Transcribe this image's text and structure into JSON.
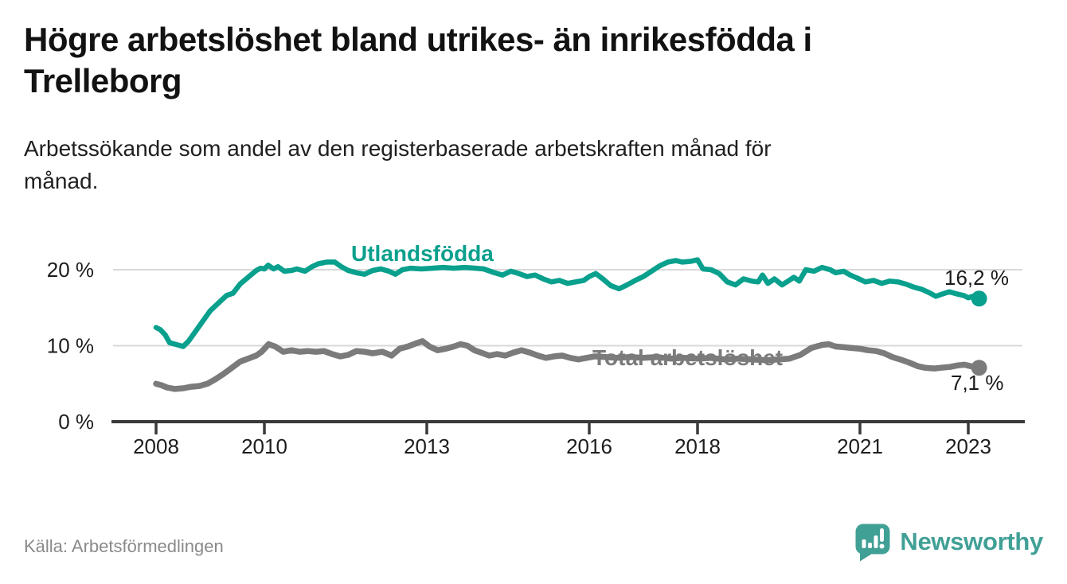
{
  "header": {
    "title": "Högre arbetslöshet bland utrikes- än inrikesfödda i Trelleborg",
    "title_lines": [
      "Högre arbetslöshet bland utrikes- än inrikesfödda i",
      "Trelleborg"
    ],
    "subtitle": "Arbetssökande som andel av den registerbaserade arbetskraften månad för månad.",
    "subtitle_lines": [
      "Arbetssökande som andel av den registerbaserade arbetskraften månad för",
      "månad."
    ]
  },
  "footer": {
    "source": "Källa: Arbetsförmedlingen",
    "brand": "Newsworthy"
  },
  "colors": {
    "teal_line": "#09a08d",
    "gray_line": "#7b7b7b",
    "grid": "#d9d9d9",
    "axis": "#3a3a3a",
    "tick_text": "#1d1d1d",
    "value_text": "#1a1a1a",
    "source_text": "#8a8a8a",
    "logo_teal": "#41a096"
  },
  "chart_data": {
    "type": "line",
    "title": "Högre arbetslöshet bland utrikes- än inrikesfödda i Trelleborg",
    "subtitle": "Arbetssökande som andel av den registerbaserade arbetskraften månad för månad.",
    "unit": "%",
    "grid": "horizontal",
    "legend_position": "inline-labels",
    "x_axis": {
      "range": [
        2007.9,
        2024.0
      ],
      "ticks": [
        2008,
        2010,
        2013,
        2016,
        2018,
        2021,
        2023
      ],
      "tick_labels": [
        "2008",
        "2010",
        "2013",
        "2016",
        "2018",
        "2021",
        "2023"
      ]
    },
    "y_axis": {
      "range": [
        0,
        22
      ],
      "ticks": [
        0,
        10,
        20
      ],
      "tick_labels": [
        "0 %",
        "10 %",
        "20 %"
      ]
    },
    "series": [
      {
        "name": "Utlandsfödda",
        "color": "#09a08d",
        "end_label": "16,2 %",
        "end_value": 16.2,
        "points": [
          [
            2008.0,
            12.4
          ],
          [
            2008.08,
            12.1
          ],
          [
            2008.17,
            11.4
          ],
          [
            2008.25,
            10.4
          ],
          [
            2008.4,
            10.1
          ],
          [
            2008.5,
            9.9
          ],
          [
            2008.6,
            10.6
          ],
          [
            2008.7,
            11.6
          ],
          [
            2008.85,
            13.1
          ],
          [
            2009.0,
            14.6
          ],
          [
            2009.15,
            15.6
          ],
          [
            2009.3,
            16.6
          ],
          [
            2009.42,
            16.9
          ],
          [
            2009.55,
            18.1
          ],
          [
            2009.7,
            19.0
          ],
          [
            2009.85,
            19.9
          ],
          [
            2009.93,
            20.2
          ],
          [
            2010.0,
            20.1
          ],
          [
            2010.07,
            20.6
          ],
          [
            2010.17,
            20.1
          ],
          [
            2010.25,
            20.4
          ],
          [
            2010.37,
            19.8
          ],
          [
            2010.5,
            19.9
          ],
          [
            2010.6,
            20.1
          ],
          [
            2010.75,
            19.8
          ],
          [
            2010.88,
            20.4
          ],
          [
            2011.0,
            20.8
          ],
          [
            2011.15,
            21.0
          ],
          [
            2011.3,
            21.0
          ],
          [
            2011.42,
            20.4
          ],
          [
            2011.55,
            19.9
          ],
          [
            2011.7,
            19.6
          ],
          [
            2011.85,
            19.4
          ],
          [
            2012.0,
            19.9
          ],
          [
            2012.15,
            20.1
          ],
          [
            2012.3,
            19.8
          ],
          [
            2012.42,
            19.4
          ],
          [
            2012.55,
            20.0
          ],
          [
            2012.7,
            20.2
          ],
          [
            2012.9,
            20.1
          ],
          [
            2013.1,
            20.2
          ],
          [
            2013.3,
            20.3
          ],
          [
            2013.5,
            20.2
          ],
          [
            2013.7,
            20.3
          ],
          [
            2013.9,
            20.2
          ],
          [
            2014.05,
            20.1
          ],
          [
            2014.25,
            19.6
          ],
          [
            2014.4,
            19.3
          ],
          [
            2014.55,
            19.8
          ],
          [
            2014.7,
            19.5
          ],
          [
            2014.85,
            19.1
          ],
          [
            2015.0,
            19.3
          ],
          [
            2015.15,
            18.8
          ],
          [
            2015.3,
            18.4
          ],
          [
            2015.45,
            18.6
          ],
          [
            2015.6,
            18.2
          ],
          [
            2015.75,
            18.4
          ],
          [
            2015.9,
            18.6
          ],
          [
            2016.0,
            19.1
          ],
          [
            2016.12,
            19.5
          ],
          [
            2016.25,
            18.8
          ],
          [
            2016.4,
            17.9
          ],
          [
            2016.55,
            17.5
          ],
          [
            2016.7,
            18.0
          ],
          [
            2016.85,
            18.6
          ],
          [
            2017.0,
            19.1
          ],
          [
            2017.15,
            19.8
          ],
          [
            2017.3,
            20.5
          ],
          [
            2017.45,
            21.0
          ],
          [
            2017.6,
            21.2
          ],
          [
            2017.72,
            21.0
          ],
          [
            2017.87,
            21.1
          ],
          [
            2018.0,
            21.3
          ],
          [
            2018.1,
            20.1
          ],
          [
            2018.25,
            20.0
          ],
          [
            2018.4,
            19.5
          ],
          [
            2018.55,
            18.4
          ],
          [
            2018.7,
            18.0
          ],
          [
            2018.85,
            18.8
          ],
          [
            2019.0,
            18.5
          ],
          [
            2019.12,
            18.4
          ],
          [
            2019.2,
            19.3
          ],
          [
            2019.3,
            18.2
          ],
          [
            2019.42,
            18.8
          ],
          [
            2019.56,
            18.0
          ],
          [
            2019.65,
            18.4
          ],
          [
            2019.78,
            19.0
          ],
          [
            2019.88,
            18.5
          ],
          [
            2020.0,
            20.0
          ],
          [
            2020.15,
            19.8
          ],
          [
            2020.3,
            20.3
          ],
          [
            2020.45,
            20.0
          ],
          [
            2020.55,
            19.6
          ],
          [
            2020.7,
            19.8
          ],
          [
            2020.82,
            19.3
          ],
          [
            2020.95,
            18.9
          ],
          [
            2021.1,
            18.4
          ],
          [
            2021.25,
            18.6
          ],
          [
            2021.4,
            18.2
          ],
          [
            2021.55,
            18.5
          ],
          [
            2021.7,
            18.4
          ],
          [
            2021.85,
            18.1
          ],
          [
            2022.0,
            17.7
          ],
          [
            2022.15,
            17.4
          ],
          [
            2022.3,
            16.9
          ],
          [
            2022.4,
            16.5
          ],
          [
            2022.52,
            16.8
          ],
          [
            2022.65,
            17.1
          ],
          [
            2022.8,
            16.8
          ],
          [
            2022.92,
            16.6
          ],
          [
            2023.0,
            16.3
          ],
          [
            2023.08,
            16.5
          ],
          [
            2023.2,
            16.2
          ]
        ]
      },
      {
        "name": "Total arbetslöshet",
        "color": "#7b7b7b",
        "end_label": "7,1 %",
        "end_value": 7.1,
        "points": [
          [
            2008.0,
            5.0
          ],
          [
            2008.1,
            4.8
          ],
          [
            2008.2,
            4.5
          ],
          [
            2008.35,
            4.3
          ],
          [
            2008.5,
            4.4
          ],
          [
            2008.65,
            4.6
          ],
          [
            2008.8,
            4.7
          ],
          [
            2008.95,
            5.0
          ],
          [
            2009.1,
            5.6
          ],
          [
            2009.25,
            6.3
          ],
          [
            2009.4,
            7.1
          ],
          [
            2009.55,
            7.9
          ],
          [
            2009.7,
            8.3
          ],
          [
            2009.85,
            8.7
          ],
          [
            2009.95,
            9.2
          ],
          [
            2010.08,
            10.2
          ],
          [
            2010.2,
            9.9
          ],
          [
            2010.35,
            9.2
          ],
          [
            2010.5,
            9.4
          ],
          [
            2010.65,
            9.2
          ],
          [
            2010.8,
            9.3
          ],
          [
            2010.95,
            9.2
          ],
          [
            2011.1,
            9.3
          ],
          [
            2011.25,
            8.9
          ],
          [
            2011.4,
            8.6
          ],
          [
            2011.55,
            8.8
          ],
          [
            2011.7,
            9.3
          ],
          [
            2011.85,
            9.2
          ],
          [
            2012.0,
            9.0
          ],
          [
            2012.18,
            9.2
          ],
          [
            2012.35,
            8.7
          ],
          [
            2012.5,
            9.6
          ],
          [
            2012.65,
            9.9
          ],
          [
            2012.8,
            10.3
          ],
          [
            2012.92,
            10.6
          ],
          [
            2013.05,
            9.9
          ],
          [
            2013.2,
            9.4
          ],
          [
            2013.35,
            9.6
          ],
          [
            2013.5,
            9.9
          ],
          [
            2013.62,
            10.2
          ],
          [
            2013.75,
            10.0
          ],
          [
            2013.88,
            9.4
          ],
          [
            2014.0,
            9.1
          ],
          [
            2014.15,
            8.7
          ],
          [
            2014.3,
            8.9
          ],
          [
            2014.45,
            8.7
          ],
          [
            2014.6,
            9.1
          ],
          [
            2014.75,
            9.4
          ],
          [
            2014.9,
            9.1
          ],
          [
            2015.05,
            8.7
          ],
          [
            2015.2,
            8.4
          ],
          [
            2015.35,
            8.6
          ],
          [
            2015.5,
            8.7
          ],
          [
            2015.65,
            8.4
          ],
          [
            2015.8,
            8.2
          ],
          [
            2015.95,
            8.4
          ],
          [
            2016.1,
            8.6
          ],
          [
            2016.3,
            8.5
          ],
          [
            2016.5,
            8.4
          ],
          [
            2016.75,
            8.5
          ],
          [
            2017.0,
            8.4
          ],
          [
            2017.25,
            8.5
          ],
          [
            2017.5,
            8.3
          ],
          [
            2017.75,
            8.4
          ],
          [
            2018.0,
            8.3
          ],
          [
            2018.25,
            8.4
          ],
          [
            2018.5,
            8.2
          ],
          [
            2018.75,
            8.3
          ],
          [
            2019.0,
            8.2
          ],
          [
            2019.25,
            8.1
          ],
          [
            2019.5,
            8.2
          ],
          [
            2019.7,
            8.3
          ],
          [
            2019.9,
            8.8
          ],
          [
            2020.1,
            9.7
          ],
          [
            2020.3,
            10.1
          ],
          [
            2020.42,
            10.2
          ],
          [
            2020.55,
            9.9
          ],
          [
            2020.7,
            9.8
          ],
          [
            2020.85,
            9.7
          ],
          [
            2021.0,
            9.6
          ],
          [
            2021.15,
            9.4
          ],
          [
            2021.3,
            9.3
          ],
          [
            2021.45,
            9.0
          ],
          [
            2021.6,
            8.5
          ],
          [
            2021.78,
            8.1
          ],
          [
            2021.9,
            7.8
          ],
          [
            2022.07,
            7.3
          ],
          [
            2022.2,
            7.1
          ],
          [
            2022.37,
            7.0
          ],
          [
            2022.5,
            7.1
          ],
          [
            2022.66,
            7.2
          ],
          [
            2022.8,
            7.4
          ],
          [
            2022.93,
            7.5
          ],
          [
            2023.05,
            7.3
          ],
          [
            2023.2,
            7.1
          ]
        ]
      }
    ]
  }
}
